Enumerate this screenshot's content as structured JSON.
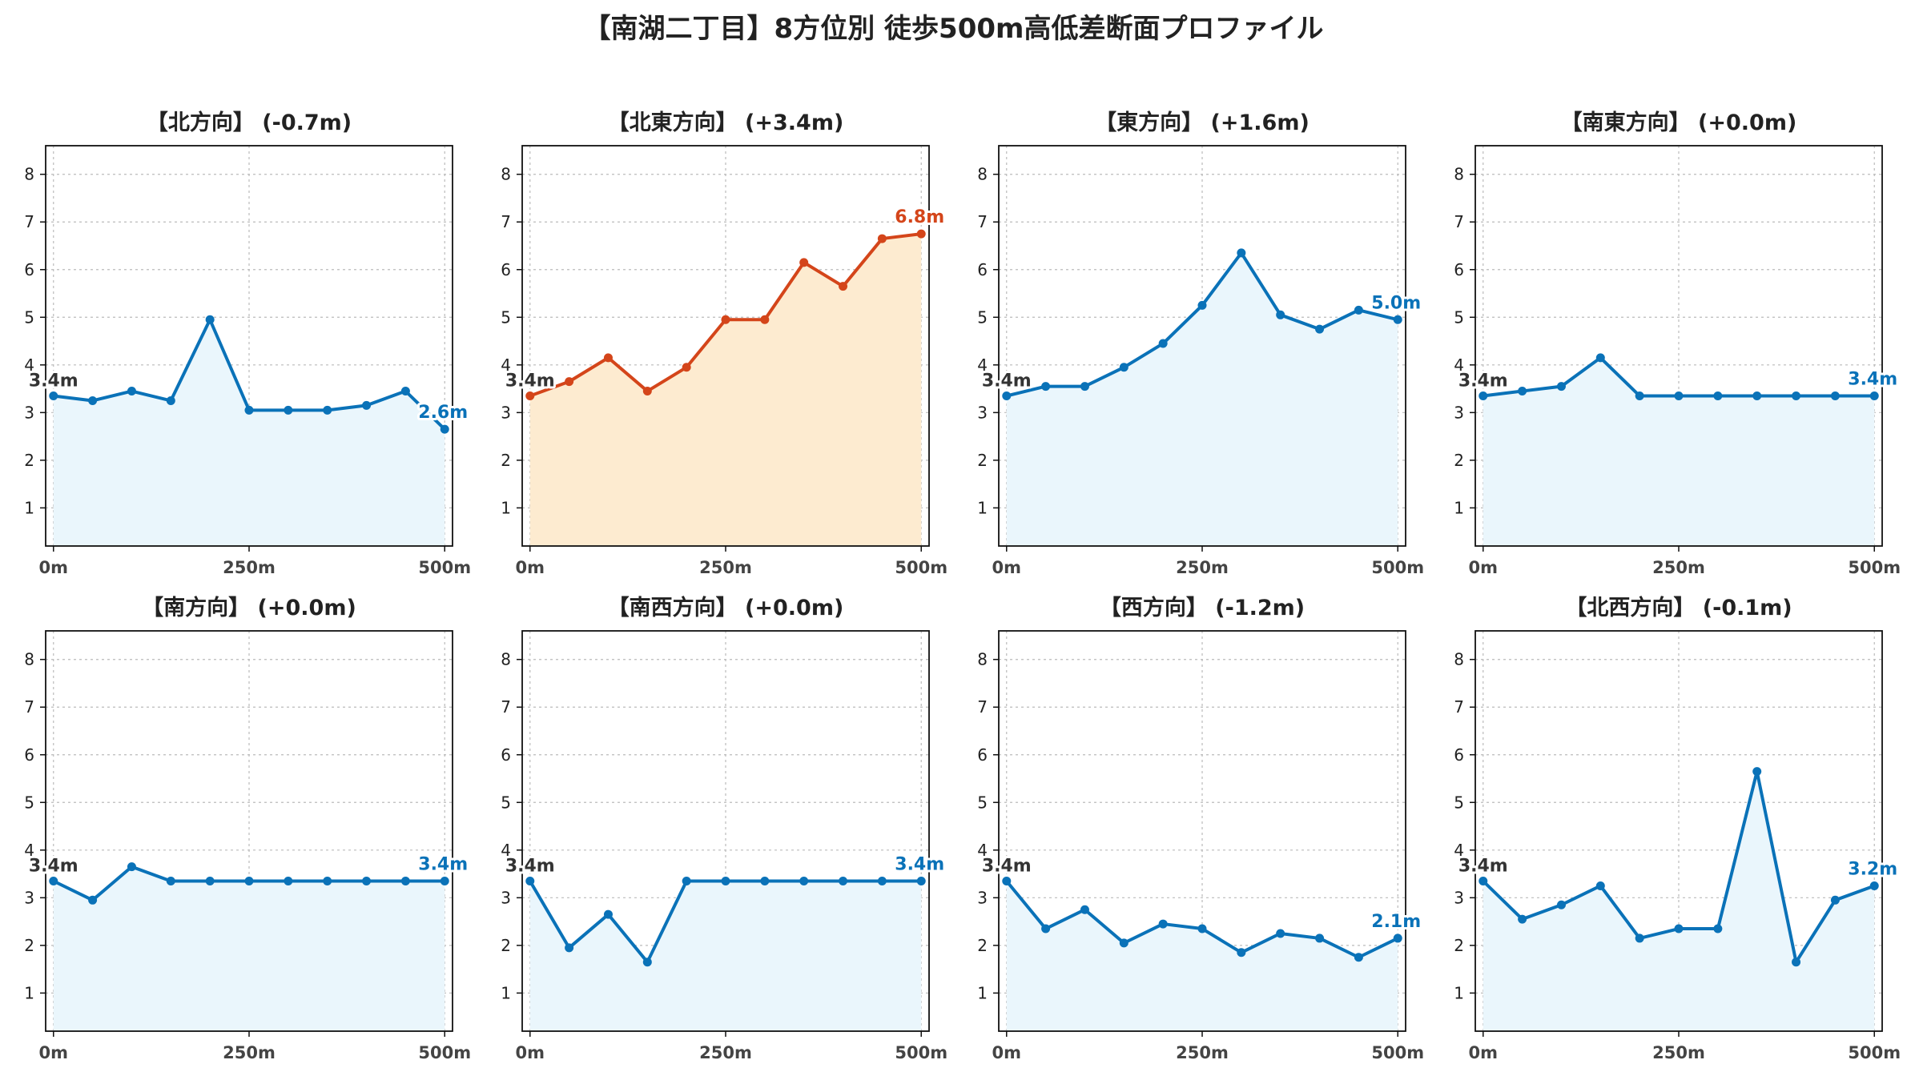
{
  "figure": {
    "title": "【南湖二丁目】8方位別 徒歩500m高低差断面プロファイル"
  },
  "colors": {
    "normal_line": "#0a72b8",
    "normal_fill": "#eaf6fc",
    "highlight_line": "#d4451a",
    "highlight_fill": "#fdebd0",
    "start_label": "#333333",
    "grid": "#bbbbbb"
  },
  "chart_data": [
    {
      "type": "area",
      "title": "【北方向】 (-0.7m)",
      "x_ticks": [
        "0m",
        "250m",
        "500m"
      ],
      "y_ticks": [
        "1",
        "2",
        "3",
        "4",
        "5",
        "6",
        "7",
        "8"
      ],
      "ylim": [
        0.2,
        8.6
      ],
      "xlim": [
        -10,
        510
      ],
      "grid": true,
      "highlight": false,
      "x": [
        0,
        50,
        100,
        150,
        200,
        250,
        300,
        350,
        400,
        450,
        500
      ],
      "values": [
        3.35,
        3.25,
        3.45,
        3.25,
        4.95,
        3.05,
        3.05,
        3.05,
        3.15,
        3.45,
        2.65
      ],
      "start_label": "3.4m",
      "end_label": "2.6m"
    },
    {
      "type": "area",
      "title": "【北東方向】 (+3.4m)",
      "x_ticks": [
        "0m",
        "250m",
        "500m"
      ],
      "y_ticks": [
        "1",
        "2",
        "3",
        "4",
        "5",
        "6",
        "7",
        "8"
      ],
      "ylim": [
        0.2,
        8.6
      ],
      "xlim": [
        -10,
        510
      ],
      "grid": true,
      "highlight": true,
      "x": [
        0,
        50,
        100,
        150,
        200,
        250,
        300,
        350,
        400,
        450,
        500
      ],
      "values": [
        3.35,
        3.65,
        4.15,
        3.45,
        3.95,
        4.95,
        4.95,
        6.15,
        5.65,
        6.65,
        6.75
      ],
      "start_label": "3.4m",
      "end_label": "6.8m"
    },
    {
      "type": "area",
      "title": "【東方向】 (+1.6m)",
      "x_ticks": [
        "0m",
        "250m",
        "500m"
      ],
      "y_ticks": [
        "1",
        "2",
        "3",
        "4",
        "5",
        "6",
        "7",
        "8"
      ],
      "ylim": [
        0.2,
        8.6
      ],
      "xlim": [
        -10,
        510
      ],
      "grid": true,
      "highlight": false,
      "x": [
        0,
        50,
        100,
        150,
        200,
        250,
        300,
        350,
        400,
        450,
        500
      ],
      "values": [
        3.35,
        3.55,
        3.55,
        3.95,
        4.45,
        5.25,
        6.35,
        5.05,
        4.75,
        5.15,
        4.95
      ],
      "start_label": "3.4m",
      "end_label": "5.0m"
    },
    {
      "type": "area",
      "title": "【南東方向】 (+0.0m)",
      "x_ticks": [
        "0m",
        "250m",
        "500m"
      ],
      "y_ticks": [
        "1",
        "2",
        "3",
        "4",
        "5",
        "6",
        "7",
        "8"
      ],
      "ylim": [
        0.2,
        8.6
      ],
      "xlim": [
        -10,
        510
      ],
      "grid": true,
      "highlight": false,
      "x": [
        0,
        50,
        100,
        150,
        200,
        250,
        300,
        350,
        400,
        450,
        500
      ],
      "values": [
        3.35,
        3.45,
        3.55,
        4.15,
        3.35,
        3.35,
        3.35,
        3.35,
        3.35,
        3.35,
        3.35
      ],
      "start_label": "3.4m",
      "end_label": "3.4m"
    },
    {
      "type": "area",
      "title": "【南方向】 (+0.0m)",
      "x_ticks": [
        "0m",
        "250m",
        "500m"
      ],
      "y_ticks": [
        "1",
        "2",
        "3",
        "4",
        "5",
        "6",
        "7",
        "8"
      ],
      "ylim": [
        0.2,
        8.6
      ],
      "xlim": [
        -10,
        510
      ],
      "grid": true,
      "highlight": false,
      "x": [
        0,
        50,
        100,
        150,
        200,
        250,
        300,
        350,
        400,
        450,
        500
      ],
      "values": [
        3.35,
        2.95,
        3.65,
        3.35,
        3.35,
        3.35,
        3.35,
        3.35,
        3.35,
        3.35,
        3.35
      ],
      "start_label": "3.4m",
      "end_label": "3.4m"
    },
    {
      "type": "area",
      "title": "【南西方向】 (+0.0m)",
      "x_ticks": [
        "0m",
        "250m",
        "500m"
      ],
      "y_ticks": [
        "1",
        "2",
        "3",
        "4",
        "5",
        "6",
        "7",
        "8"
      ],
      "ylim": [
        0.2,
        8.6
      ],
      "xlim": [
        -10,
        510
      ],
      "grid": true,
      "highlight": false,
      "x": [
        0,
        50,
        100,
        150,
        200,
        250,
        300,
        350,
        400,
        450,
        500
      ],
      "values": [
        3.35,
        1.95,
        2.65,
        1.65,
        3.35,
        3.35,
        3.35,
        3.35,
        3.35,
        3.35,
        3.35
      ],
      "start_label": "3.4m",
      "end_label": "3.4m"
    },
    {
      "type": "area",
      "title": "【西方向】 (-1.2m)",
      "x_ticks": [
        "0m",
        "250m",
        "500m"
      ],
      "y_ticks": [
        "1",
        "2",
        "3",
        "4",
        "5",
        "6",
        "7",
        "8"
      ],
      "ylim": [
        0.2,
        8.6
      ],
      "xlim": [
        -10,
        510
      ],
      "grid": true,
      "highlight": false,
      "x": [
        0,
        50,
        100,
        150,
        200,
        250,
        300,
        350,
        400,
        450,
        500
      ],
      "values": [
        3.35,
        2.35,
        2.75,
        2.05,
        2.45,
        2.35,
        1.85,
        2.25,
        2.15,
        1.75,
        2.15
      ],
      "start_label": "3.4m",
      "end_label": "2.1m"
    },
    {
      "type": "area",
      "title": "【北西方向】 (-0.1m)",
      "x_ticks": [
        "0m",
        "250m",
        "500m"
      ],
      "y_ticks": [
        "1",
        "2",
        "3",
        "4",
        "5",
        "6",
        "7",
        "8"
      ],
      "ylim": [
        0.2,
        8.6
      ],
      "xlim": [
        -10,
        510
      ],
      "grid": true,
      "highlight": false,
      "x": [
        0,
        50,
        100,
        150,
        200,
        250,
        300,
        350,
        400,
        450,
        500
      ],
      "values": [
        3.35,
        2.55,
        2.85,
        3.25,
        2.15,
        2.35,
        2.35,
        5.65,
        1.65,
        2.95,
        3.25
      ],
      "start_label": "3.4m",
      "end_label": "3.2m"
    }
  ]
}
